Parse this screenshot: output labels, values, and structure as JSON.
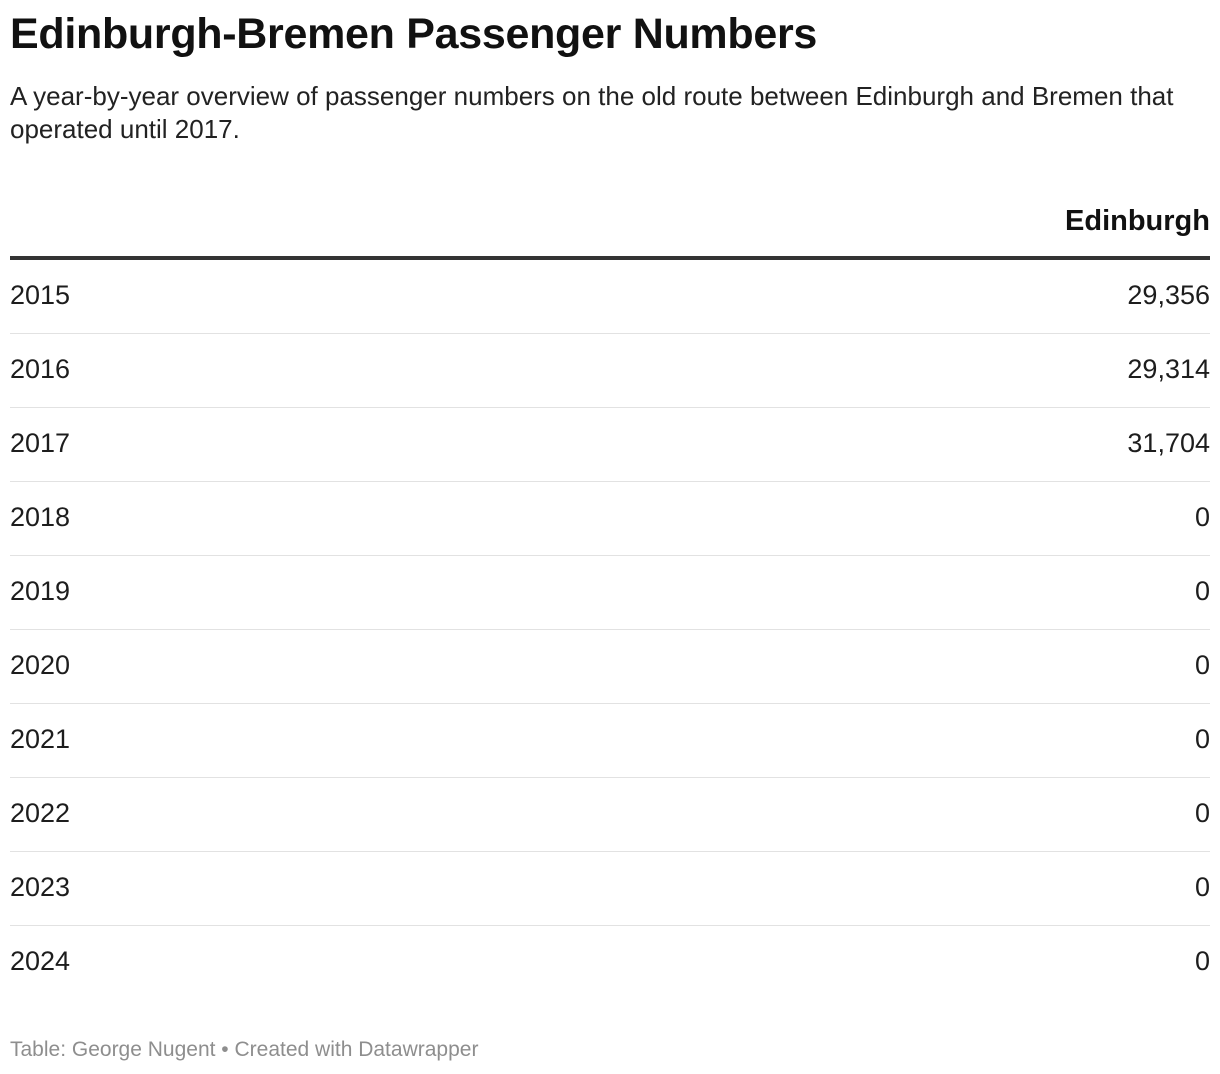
{
  "chart_data": {
    "type": "table",
    "title": "Edinburgh-Bremen Passenger Numbers",
    "subtitle": "A year-by-year overview of passenger numbers on the old route between Edinburgh and Bremen that operated until 2017.",
    "columns": [
      "",
      "Edinburgh"
    ],
    "rows": [
      {
        "year": "2015",
        "value": "29,356"
      },
      {
        "year": "2016",
        "value": "29,314"
      },
      {
        "year": "2017",
        "value": "31,704"
      },
      {
        "year": "2018",
        "value": "0"
      },
      {
        "year": "2019",
        "value": "0"
      },
      {
        "year": "2020",
        "value": "0"
      },
      {
        "year": "2021",
        "value": "0"
      },
      {
        "year": "2022",
        "value": "0"
      },
      {
        "year": "2023",
        "value": "0"
      },
      {
        "year": "2024",
        "value": "0"
      }
    ],
    "footer": "Table: George Nugent • Created with Datawrapper"
  }
}
